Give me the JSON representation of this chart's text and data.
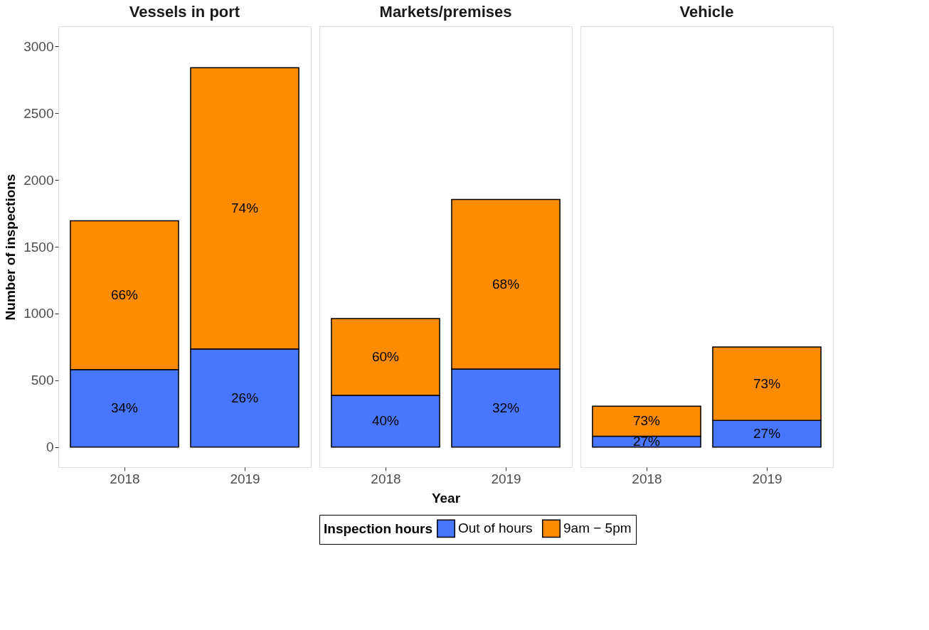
{
  "chart_data": [
    {
      "type": "bar",
      "title": "Vessels in port",
      "ylabel": "Number of inspections",
      "categories": [
        "2018",
        "2019"
      ],
      "stacked": true,
      "ylim": [
        -150,
        3150
      ],
      "yticks": [
        0,
        500,
        1000,
        1500,
        2000,
        2500,
        3000
      ],
      "grid": false,
      "series": [
        {
          "color": "#4876ff",
          "values": [
            580,
            735
          ]
        },
        {
          "color": "#ff8c00",
          "values": [
            1114,
            2105
          ]
        }
      ],
      "annotations": [
        "34%",
        "26%",
        "66%",
        "74%"
      ]
    },
    {
      "type": "bar",
      "title": "Markets/premises",
      "xlabel": "Year",
      "categories": [
        "2018",
        "2019"
      ],
      "stacked": true,
      "ylim": [
        -150,
        3150
      ],
      "yticks": [
        0,
        500,
        1000,
        1500,
        2000,
        2500,
        3000
      ],
      "grid": false,
      "legend": "bottom",
      "legend_title": "Inspection hours",
      "tick_labels": "x",
      "series": [
        {
          "name": "Out of hours",
          "color": "#4876ff",
          "values": [
            388,
            584
          ]
        },
        {
          "name": "9am − 5pm",
          "color": "#ff8c00",
          "values": [
            575,
            1270
          ]
        }
      ],
      "annotations": [
        "40%",
        "32%",
        "60%",
        "68%"
      ]
    },
    {
      "type": "bar",
      "title": "Vehicle",
      "categories": [
        "2018",
        "2019"
      ],
      "stacked": true,
      "ylim": [
        -150,
        3150
      ],
      "yticks": [
        0,
        500,
        1000,
        1500,
        2000,
        2500,
        3000
      ],
      "grid": false,
      "tick_labels": "x",
      "series": [
        {
          "color": "#4876ff",
          "values": [
            81,
            200
          ]
        },
        {
          "color": "#ff8c00",
          "values": [
            226,
            549
          ]
        }
      ],
      "annotations": [
        "27%",
        "27%",
        "73%",
        "73%"
      ]
    }
  ]
}
